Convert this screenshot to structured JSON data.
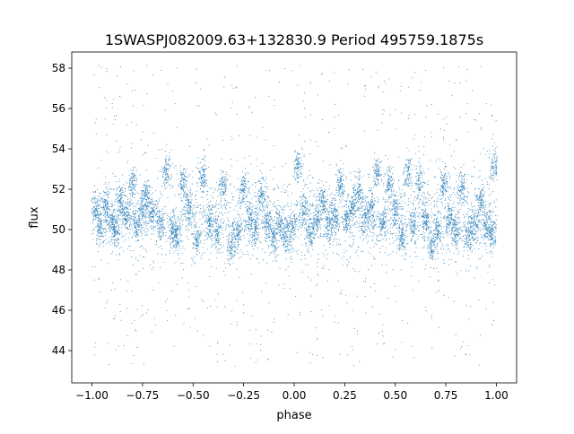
{
  "chart_data": {
    "type": "scatter",
    "title": "1SWASPJ082009.63+132830.9 Period 495759.1875s",
    "xlabel": "phase",
    "ylabel": "flux",
    "xlim": [
      -1.1,
      1.1
    ],
    "ylim": [
      42.4,
      58.8
    ],
    "xticks": [
      -1.0,
      -0.75,
      -0.5,
      -0.25,
      0.0,
      0.25,
      0.5,
      0.75,
      1.0
    ],
    "xtick_labels": [
      "−1.00",
      "−0.75",
      "−0.50",
      "−0.25",
      "0.00",
      "0.25",
      "0.50",
      "0.75",
      "1.00"
    ],
    "yticks": [
      44,
      46,
      48,
      50,
      52,
      54,
      56,
      58
    ],
    "ytick_labels": [
      "44",
      "46",
      "48",
      "50",
      "52",
      "54",
      "56",
      "58"
    ],
    "grid": false,
    "marker_color": "#1f77b4",
    "phase_range": [
      -1.0,
      1.0
    ],
    "baseline_flux": 50.0,
    "clumps": [
      {
        "phase": -0.98,
        "flux": 51.0
      },
      {
        "phase": -0.96,
        "flux": 50.0
      },
      {
        "phase": -0.93,
        "flux": 51.2
      },
      {
        "phase": -0.9,
        "flux": 50.4
      },
      {
        "phase": -0.88,
        "flux": 49.9
      },
      {
        "phase": -0.86,
        "flux": 51.5
      },
      {
        "phase": -0.83,
        "flux": 50.6
      },
      {
        "phase": -0.8,
        "flux": 52.3
      },
      {
        "phase": -0.78,
        "flux": 50.3
      },
      {
        "phase": -0.75,
        "flux": 51.0
      },
      {
        "phase": -0.73,
        "flux": 51.6
      },
      {
        "phase": -0.7,
        "flux": 50.8
      },
      {
        "phase": -0.66,
        "flux": 50.2
      },
      {
        "phase": -0.63,
        "flux": 52.9
      },
      {
        "phase": -0.6,
        "flux": 50.0
      },
      {
        "phase": -0.58,
        "flux": 49.6
      },
      {
        "phase": -0.55,
        "flux": 52.3
      },
      {
        "phase": -0.52,
        "flux": 51.0
      },
      {
        "phase": -0.48,
        "flux": 49.5
      },
      {
        "phase": -0.45,
        "flux": 52.7
      },
      {
        "phase": -0.42,
        "flux": 50.4
      },
      {
        "phase": -0.38,
        "flux": 49.8
      },
      {
        "phase": -0.35,
        "flux": 52.1
      },
      {
        "phase": -0.31,
        "flux": 49.2
      },
      {
        "phase": -0.28,
        "flux": 49.8
      },
      {
        "phase": -0.25,
        "flux": 52.1
      },
      {
        "phase": -0.22,
        "flux": 50.6
      },
      {
        "phase": -0.19,
        "flux": 49.9
      },
      {
        "phase": -0.16,
        "flux": 51.7
      },
      {
        "phase": -0.13,
        "flux": 50.3
      },
      {
        "phase": -0.1,
        "flux": 49.6
      },
      {
        "phase": -0.07,
        "flux": 50.2
      },
      {
        "phase": -0.04,
        "flux": 49.7
      },
      {
        "phase": -0.01,
        "flux": 50.2
      },
      {
        "phase": 0.02,
        "flux": 53.2
      },
      {
        "phase": 0.05,
        "flux": 51.0
      },
      {
        "phase": 0.08,
        "flux": 49.8
      },
      {
        "phase": 0.11,
        "flux": 50.5
      },
      {
        "phase": 0.14,
        "flux": 51.4
      },
      {
        "phase": 0.17,
        "flux": 50.2
      },
      {
        "phase": 0.2,
        "flux": 50.8
      },
      {
        "phase": 0.23,
        "flux": 52.2
      },
      {
        "phase": 0.26,
        "flux": 50.6
      },
      {
        "phase": 0.29,
        "flux": 51.2
      },
      {
        "phase": 0.32,
        "flux": 51.8
      },
      {
        "phase": 0.35,
        "flux": 50.5
      },
      {
        "phase": 0.38,
        "flux": 51.0
      },
      {
        "phase": 0.41,
        "flux": 52.8
      },
      {
        "phase": 0.44,
        "flux": 50.3
      },
      {
        "phase": 0.47,
        "flux": 52.3
      },
      {
        "phase": 0.5,
        "flux": 51.0
      },
      {
        "phase": 0.53,
        "flux": 49.6
      },
      {
        "phase": 0.56,
        "flux": 52.7
      },
      {
        "phase": 0.59,
        "flux": 50.2
      },
      {
        "phase": 0.62,
        "flux": 52.3
      },
      {
        "phase": 0.65,
        "flux": 50.4
      },
      {
        "phase": 0.68,
        "flux": 49.1
      },
      {
        "phase": 0.71,
        "flux": 50.0
      },
      {
        "phase": 0.74,
        "flux": 52.3
      },
      {
        "phase": 0.77,
        "flux": 50.5
      },
      {
        "phase": 0.8,
        "flux": 49.8
      },
      {
        "phase": 0.83,
        "flux": 52.0
      },
      {
        "phase": 0.86,
        "flux": 49.6
      },
      {
        "phase": 0.89,
        "flux": 50.2
      },
      {
        "phase": 0.92,
        "flux": 51.4
      },
      {
        "phase": 0.95,
        "flux": 50.1
      },
      {
        "phase": 0.98,
        "flux": 49.8
      },
      {
        "phase": 0.99,
        "flux": 53.2
      }
    ]
  }
}
